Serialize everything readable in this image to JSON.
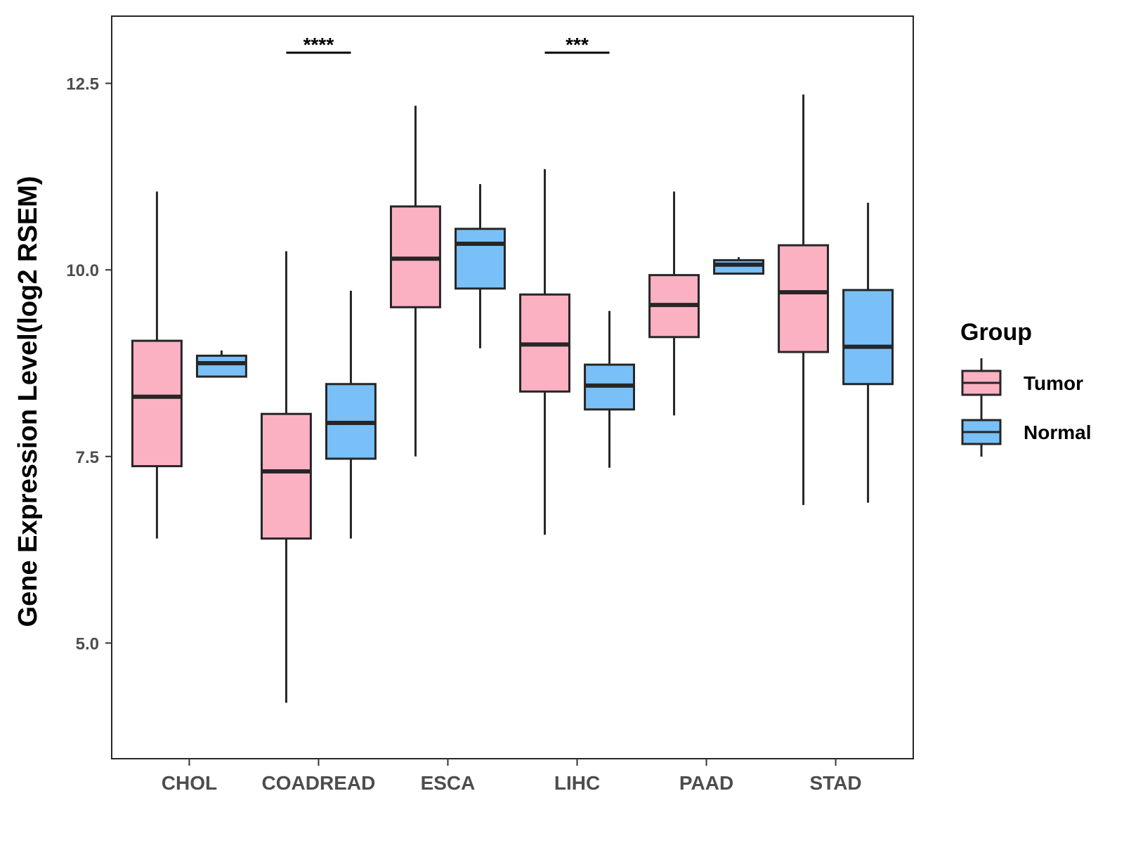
{
  "chart_data": {
    "type": "boxplot",
    "title": "",
    "xlabel": "",
    "ylabel": "Gene Expression Level(log2 RSEM)",
    "ylim": [
      3.45,
      13.4
    ],
    "yticks": [
      5.0,
      7.5,
      10.0,
      12.5
    ],
    "ytick_labels": [
      "5.0",
      "7.5",
      "10.0",
      "12.5"
    ],
    "grid": false,
    "legend": {
      "title": "Group",
      "position": "right",
      "entries": [
        "Tumor",
        "Normal"
      ]
    },
    "colors": {
      "Tumor": "#fcb1c3",
      "Normal": "#78c0f7",
      "outline": "#262626"
    },
    "categories": [
      "CHOL",
      "COADREAD",
      "ESCA",
      "LIHC",
      "PAAD",
      "STAD"
    ],
    "series": [
      {
        "name": "Tumor",
        "boxes": [
          {
            "category": "CHOL",
            "whisker_low": 6.4,
            "q1": 7.37,
            "median": 8.3,
            "q3": 9.05,
            "whisker_high": 11.05
          },
          {
            "category": "COADREAD",
            "whisker_low": 4.2,
            "q1": 6.4,
            "median": 7.3,
            "q3": 8.07,
            "whisker_high": 10.25
          },
          {
            "category": "ESCA",
            "whisker_low": 7.5,
            "q1": 9.5,
            "median": 10.15,
            "q3": 10.85,
            "whisker_high": 12.2
          },
          {
            "category": "LIHC",
            "whisker_low": 6.45,
            "q1": 8.37,
            "median": 9.0,
            "q3": 9.67,
            "whisker_high": 11.35
          },
          {
            "category": "PAAD",
            "whisker_low": 8.05,
            "q1": 9.1,
            "median": 9.53,
            "q3": 9.93,
            "whisker_high": 11.05
          },
          {
            "category": "STAD",
            "whisker_low": 6.85,
            "q1": 8.9,
            "median": 9.7,
            "q3": 10.33,
            "whisker_high": 12.35
          }
        ]
      },
      {
        "name": "Normal",
        "boxes": [
          {
            "category": "CHOL",
            "whisker_low": 8.57,
            "q1": 8.57,
            "median": 8.75,
            "q3": 8.85,
            "whisker_high": 8.92
          },
          {
            "category": "COADREAD",
            "whisker_low": 6.4,
            "q1": 7.47,
            "median": 7.95,
            "q3": 8.47,
            "whisker_high": 9.72
          },
          {
            "category": "ESCA",
            "whisker_low": 8.95,
            "q1": 9.75,
            "median": 10.35,
            "q3": 10.55,
            "whisker_high": 11.15
          },
          {
            "category": "LIHC",
            "whisker_low": 7.35,
            "q1": 8.13,
            "median": 8.45,
            "q3": 8.73,
            "whisker_high": 9.45
          },
          {
            "category": "PAAD",
            "whisker_low": 9.95,
            "q1": 9.95,
            "median": 10.07,
            "q3": 10.13,
            "whisker_high": 10.17
          },
          {
            "category": "STAD",
            "whisker_low": 6.88,
            "q1": 8.47,
            "median": 8.97,
            "q3": 9.73,
            "whisker_high": 10.9
          }
        ]
      }
    ],
    "annotations": [
      {
        "category": "COADREAD",
        "label": "****"
      },
      {
        "category": "LIHC",
        "label": "***"
      }
    ]
  }
}
